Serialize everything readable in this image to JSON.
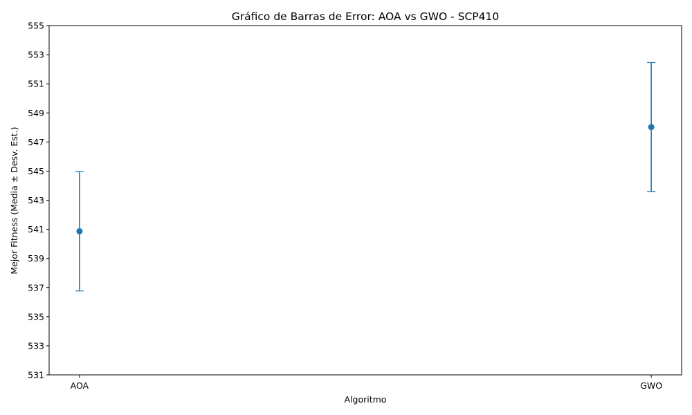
{
  "colors": {
    "series": "#1f77b4",
    "axis": "#000000",
    "background": "#ffffff"
  },
  "chart_data": {
    "type": "scatter",
    "title": "Gráfico de Barras de Error: AOA vs GWO - SCP410",
    "xlabel": "Algoritmo",
    "ylabel": "Mejor Fitness (Media ± Desv. Est.)",
    "categories": [
      "AOA",
      "GWO"
    ],
    "series": [
      {
        "values": [
          540.87,
          548.03
        ],
        "std": [
          4.1,
          4.43
        ],
        "error_bars": true,
        "marker": "circle"
      }
    ],
    "ylim": [
      531,
      555
    ],
    "yticks": [
      "531",
      "533",
      "535",
      "537",
      "539",
      "541",
      "543",
      "545",
      "547",
      "549",
      "551",
      "553",
      "555"
    ],
    "grid": false,
    "legend": "none"
  }
}
